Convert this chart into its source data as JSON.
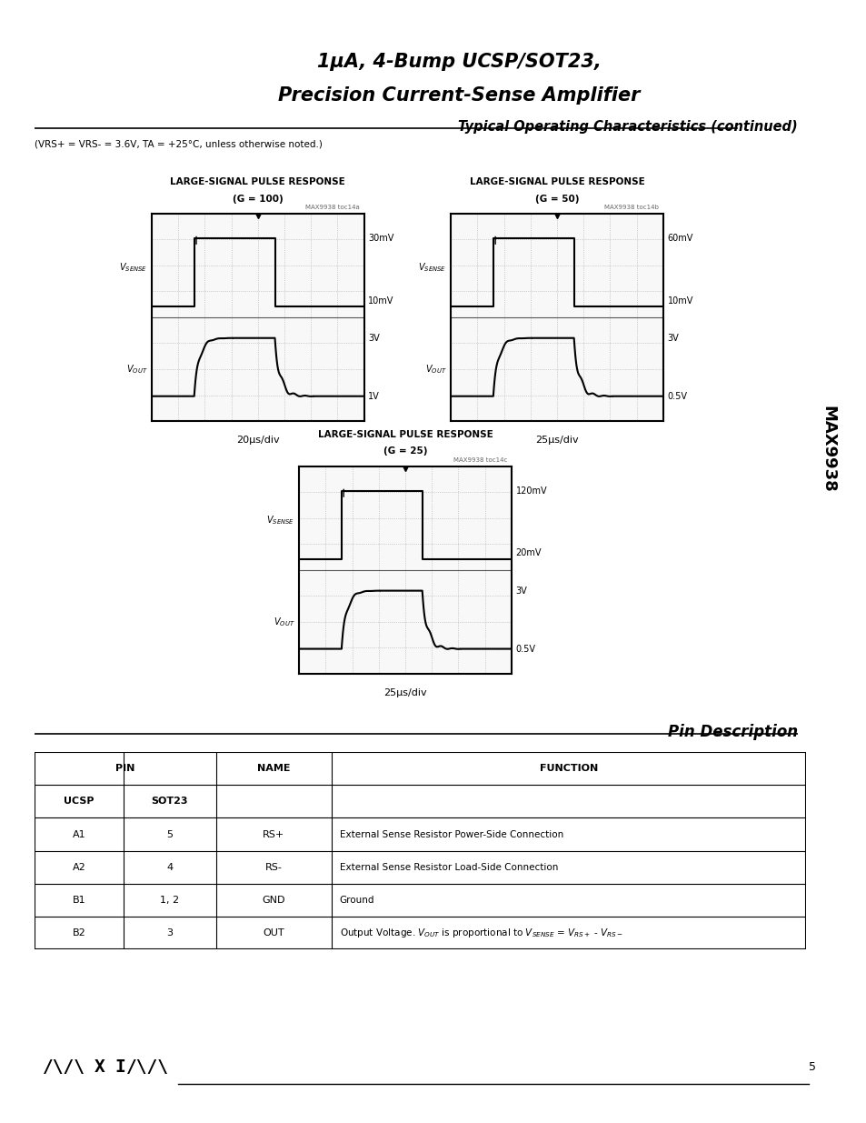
{
  "title_line1": "1μA, 4-Bump UCSP/SOT23,",
  "title_line2": "Precision Current-Sense Amplifier",
  "subtitle": "Typical Operating Characteristics (continued)",
  "conditions": "(VRS+ = VRS- = 3.6V, TA = +25°C, unless otherwise noted.)",
  "side_text": "MAX9938",
  "chart1_title_l1": "LARGE-SIGNAL PULSE RESPONSE",
  "chart1_title_l2": "(G = 100)",
  "chart1_xlabel": "20μs/div",
  "chart1_watermark": "MAX9938 toc14a",
  "chart1_labels_right": [
    "30mV",
    "10mV",
    "3V",
    "1V"
  ],
  "chart2_title_l1": "LARGE-SIGNAL PULSE RESPONSE",
  "chart2_title_l2": "(G = 50)",
  "chart2_xlabel": "25μs/div",
  "chart2_watermark": "MAX9938 toc14b",
  "chart2_labels_right": [
    "60mV",
    "10mV",
    "3V",
    "0.5V"
  ],
  "chart3_title_l1": "LARGE-SIGNAL PULSE RESPONSE",
  "chart3_title_l2": "(G = 25)",
  "chart3_xlabel": "25μs/div",
  "chart3_watermark": "MAX9938 toc14c",
  "chart3_labels_right": [
    "120mV",
    "20mV",
    "3V",
    "0.5V"
  ],
  "pin_desc_title": "Pin Description",
  "table_rows": [
    [
      "A1",
      "5",
      "RS+",
      "External Sense Resistor Power-Side Connection"
    ],
    [
      "A2",
      "4",
      "RS-",
      "External Sense Resistor Load-Side Connection"
    ],
    [
      "B1",
      "1, 2",
      "GND",
      "Ground"
    ],
    [
      "B2",
      "3",
      "OUT",
      "Output Voltage. VOUT is proportional to VSENSE = VRS+ - VRS-"
    ]
  ],
  "footer_page": "5",
  "bg_color": "#ffffff",
  "grid_color": "#aaaaaa",
  "trace_color": "#000000"
}
